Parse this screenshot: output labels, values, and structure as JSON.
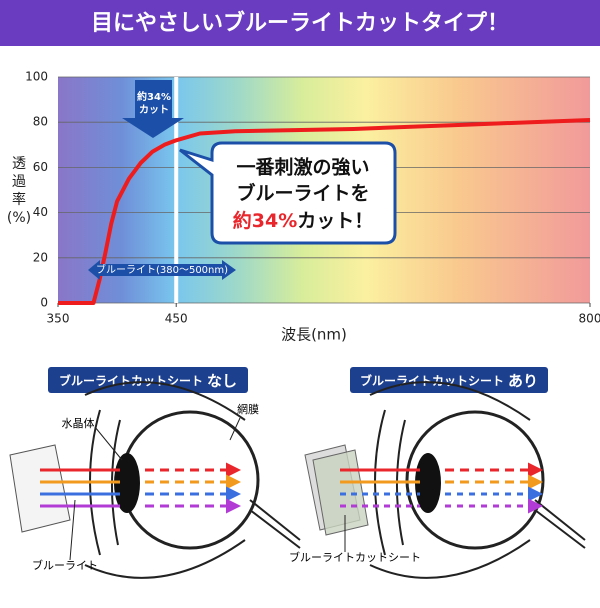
{
  "header": {
    "title": "目にやさしいブルーライトカットタイプ！"
  },
  "chart_data": {
    "type": "line",
    "ylabel": "透過率(%)",
    "xlabel": "波長(nm)",
    "x": [
      350,
      380,
      385,
      390,
      395,
      400,
      410,
      420,
      430,
      440,
      450,
      470,
      500,
      550,
      600,
      700,
      800
    ],
    "series": [
      {
        "color": "#ee1c1c",
        "values": [
          0,
          0,
          10,
          22,
          35,
          45,
          55,
          62,
          67,
          70,
          72,
          75,
          76,
          76.5,
          77,
          79,
          81
        ]
      }
    ],
    "xlim": [
      350,
      800
    ],
    "ylim": [
      0,
      100
    ],
    "xticks": [
      350,
      450,
      800
    ],
    "yticks": [
      0,
      20,
      40,
      60,
      80,
      100
    ],
    "grid": true,
    "annotations": {
      "cut_arrow": [
        "約34%",
        "カット"
      ],
      "band": "ブルーライト(380〜500nm)",
      "callout": {
        "line1": "一番刺激の強い",
        "line2": "ブルーライトを",
        "highlight": "約34%",
        "tail": "カット！"
      }
    }
  },
  "diagrams": [
    {
      "label": "ブルーライトカットシート",
      "state": "なし",
      "lens": "水晶体",
      "retina": "網膜",
      "light": "ブルーライト"
    },
    {
      "label": "ブルーライトカットシート",
      "state": "あり",
      "sheet": "ブルーライトカットシート"
    }
  ]
}
